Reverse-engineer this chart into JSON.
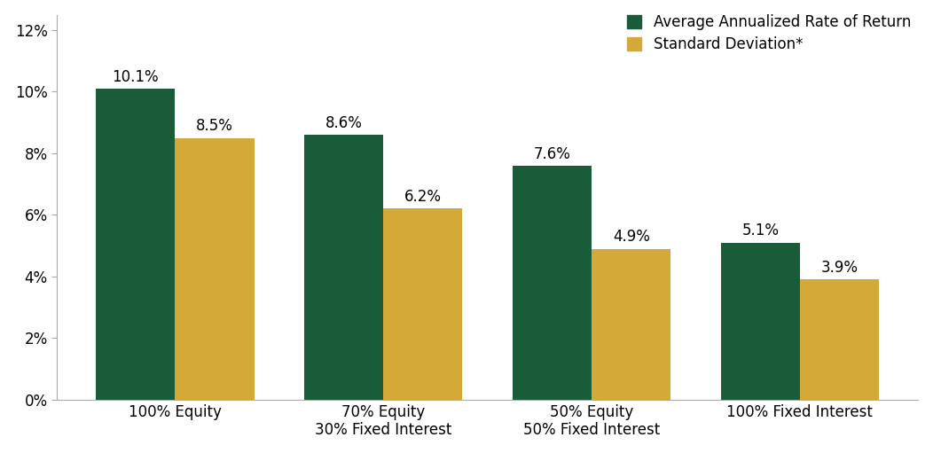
{
  "categories": [
    "100% Equity",
    "70% Equity\n30% Fixed Interest",
    "50% Equity\n50% Fixed Interest",
    "100% Fixed Interest"
  ],
  "avg_return": [
    10.1,
    8.6,
    7.6,
    5.1
  ],
  "std_deviation": [
    8.5,
    6.2,
    4.9,
    3.9
  ],
  "avg_return_color": "#1a5c3a",
  "std_dev_color": "#d4a937",
  "legend_labels": [
    "Average Annualized Rate of Return",
    "Standard Deviation*"
  ],
  "ylim": [
    0,
    12.5
  ],
  "yticks": [
    0,
    2,
    4,
    6,
    8,
    10,
    12
  ],
  "ytick_labels": [
    "0%",
    "2%",
    "4%",
    "6%",
    "8%",
    "10%",
    "12%"
  ],
  "bar_width": 0.38,
  "tick_fontsize": 12,
  "legend_fontsize": 12,
  "value_label_fontsize": 12,
  "background_color": "#ffffff",
  "figure_bg": "#ffffff"
}
